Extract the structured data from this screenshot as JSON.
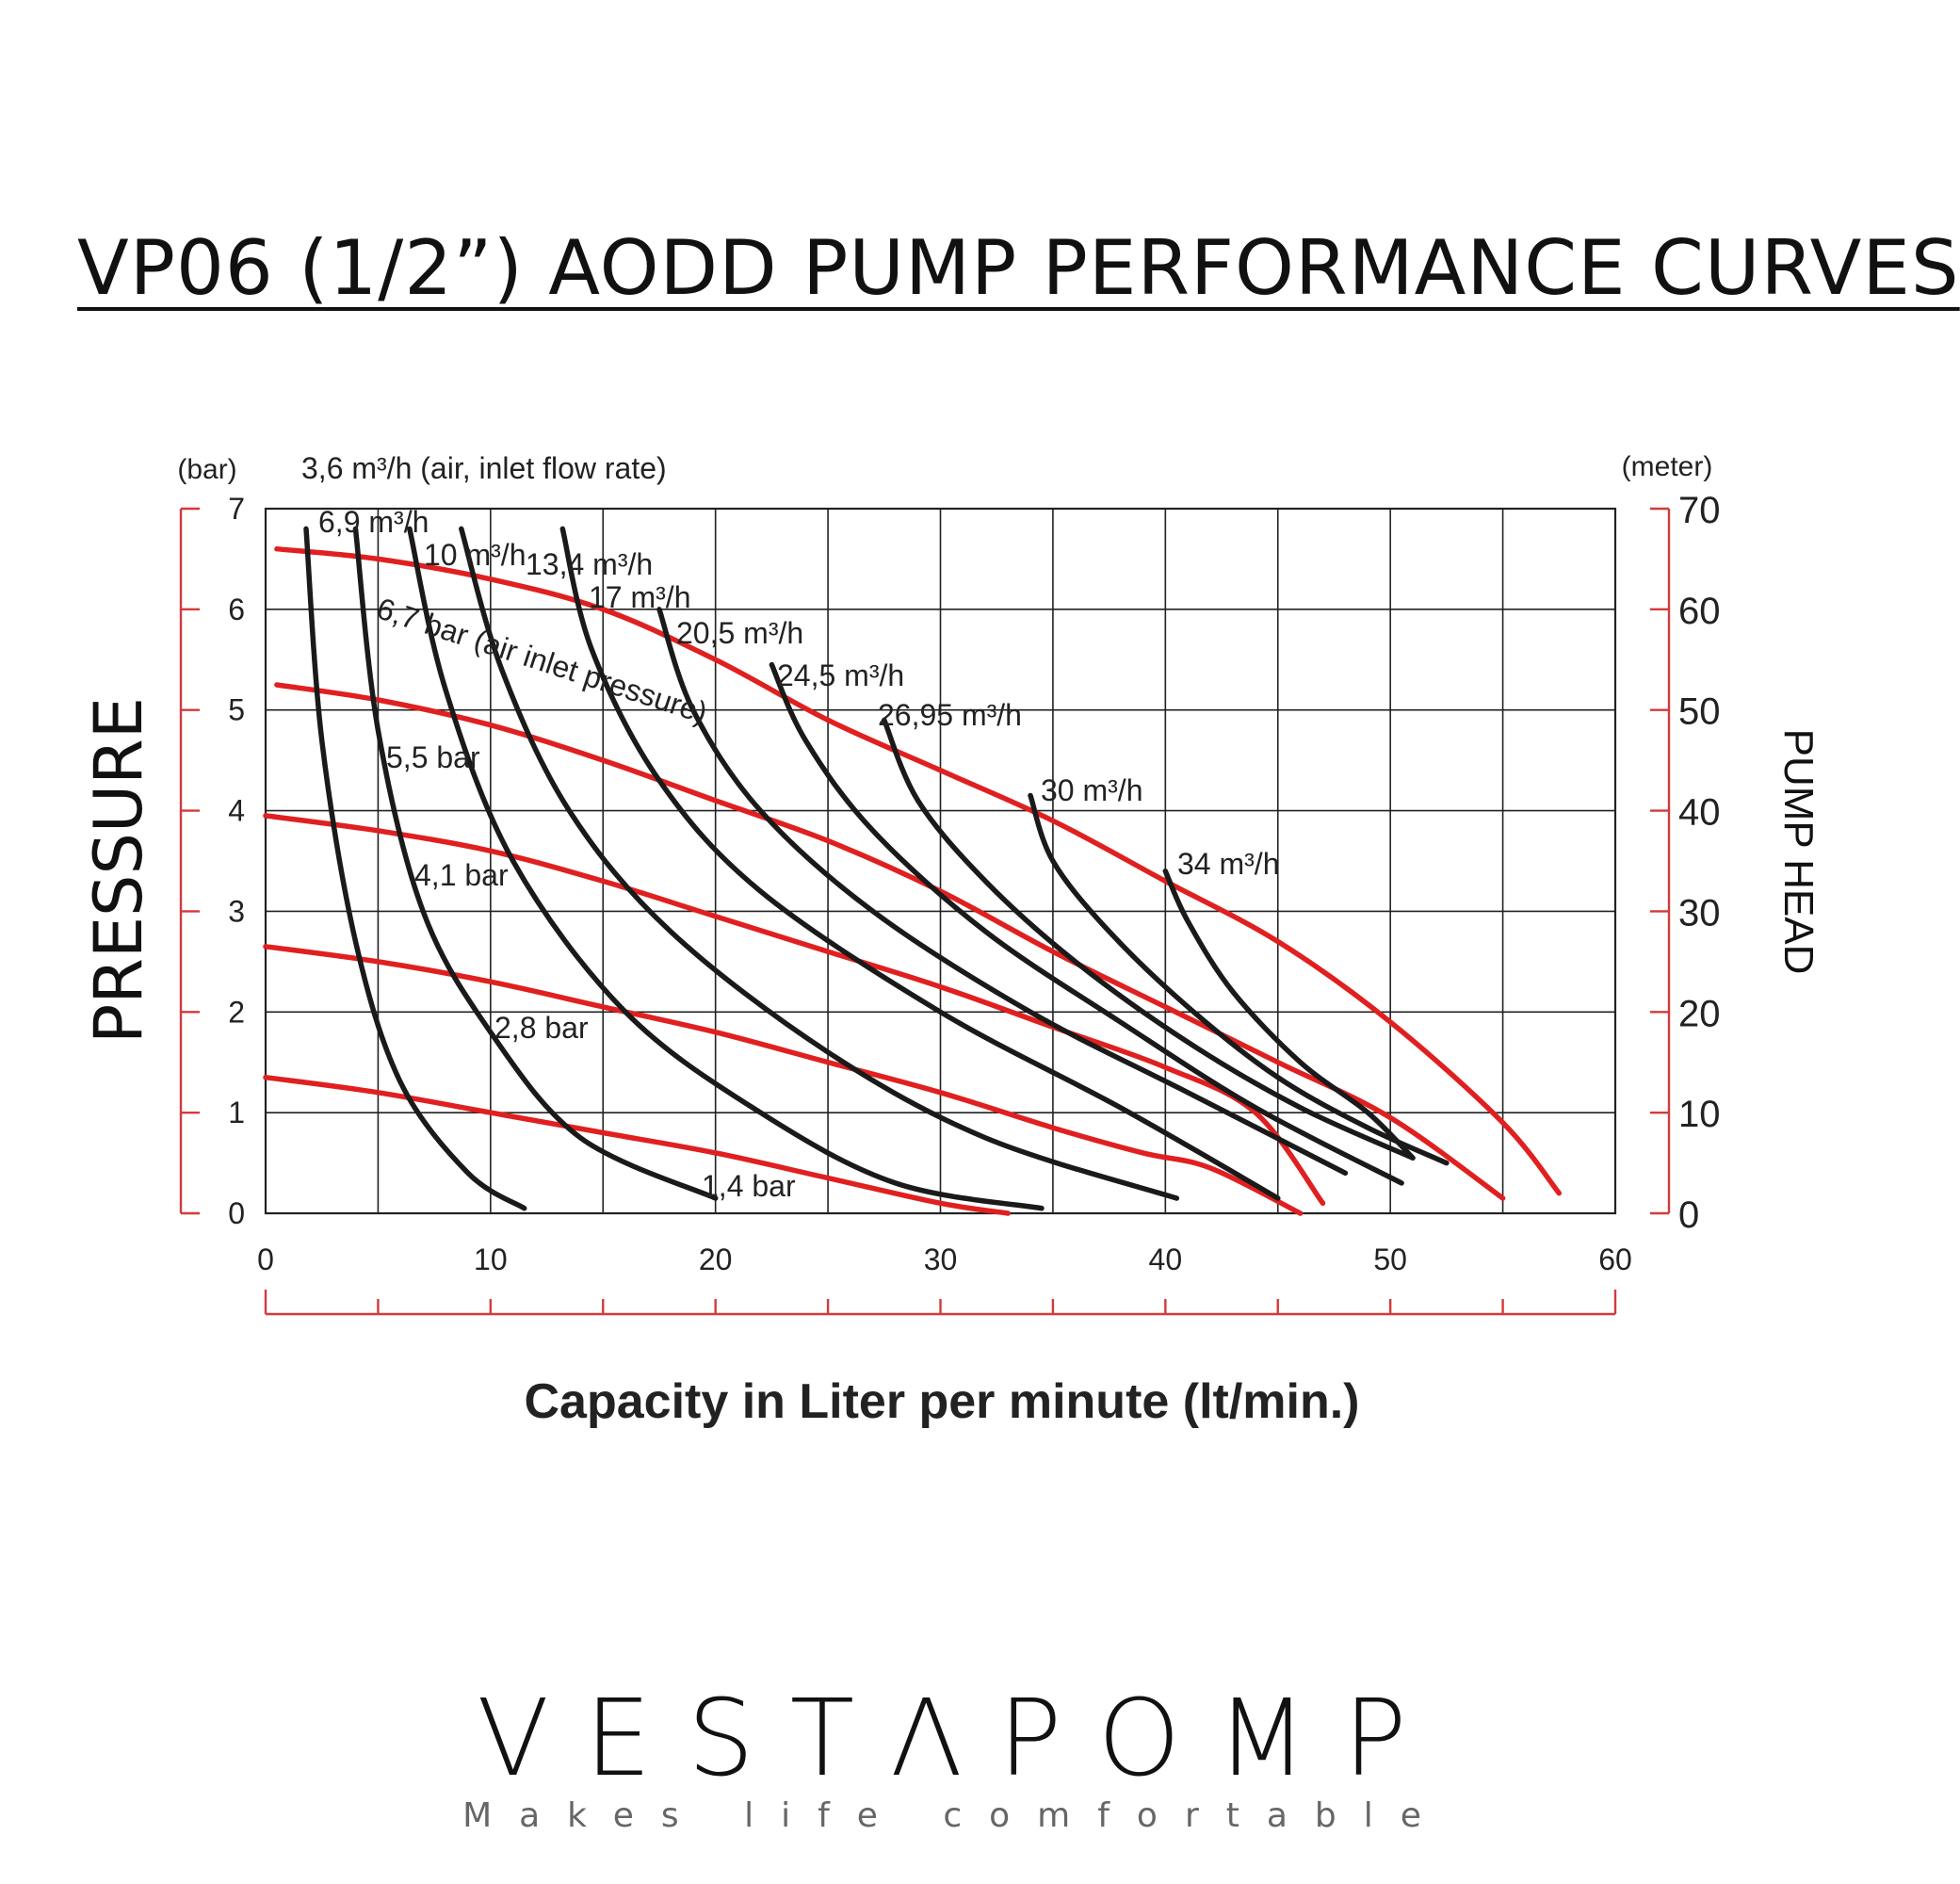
{
  "page": {
    "title": "VP06 (1/2”) AODD PUMP PERFORMANCE CURVES"
  },
  "brand": {
    "logo": "VESTΛPOMP",
    "tagline": "Makes life comfortable"
  },
  "colors": {
    "pressure_curve": "#e02020",
    "air_curve": "#1a1a1a",
    "axis_accent": "#d43a3a",
    "grid": "#222222"
  },
  "chart_data": {
    "type": "line",
    "title": "VP06 (1/2”) AODD PUMP PERFORMANCE CURVES",
    "xlabel": "Capacity in Liter per minute (lt/min.)",
    "ylabel": "PRESSURE",
    "y2label": "PUMP HEAD",
    "y_unit": "(bar)",
    "y2_unit": "(meter)",
    "xlim": [
      0,
      60
    ],
    "ylim": [
      0,
      7
    ],
    "y2lim": [
      0,
      70
    ],
    "x_ticks": [
      0,
      10,
      20,
      30,
      40,
      50,
      60
    ],
    "y_ticks": [
      0,
      1,
      2,
      3,
      4,
      5,
      6,
      7
    ],
    "y2_ticks": [
      0,
      10,
      20,
      30,
      40,
      50,
      60,
      70
    ],
    "grid": true,
    "pressure_curves": [
      {
        "name": "6,7 bar (air inlet pressure)",
        "points": [
          [
            0.5,
            6.6
          ],
          [
            5,
            6.5
          ],
          [
            10,
            6.3
          ],
          [
            15,
            6.0
          ],
          [
            20,
            5.5
          ],
          [
            25,
            4.9
          ],
          [
            30,
            4.4
          ],
          [
            35,
            3.9
          ],
          [
            40,
            3.3
          ],
          [
            45,
            2.7
          ],
          [
            50,
            1.9
          ],
          [
            55,
            0.9
          ],
          [
            57.5,
            0.2
          ]
        ]
      },
      {
        "name": "5,5 bar",
        "points": [
          [
            0.5,
            5.25
          ],
          [
            5,
            5.1
          ],
          [
            10,
            4.85
          ],
          [
            15,
            4.5
          ],
          [
            20,
            4.1
          ],
          [
            25,
            3.7
          ],
          [
            30,
            3.2
          ],
          [
            35,
            2.6
          ],
          [
            40,
            2.05
          ],
          [
            45,
            1.5
          ],
          [
            50,
            0.95
          ],
          [
            55,
            0.15
          ]
        ]
      },
      {
        "name": "4,1 bar",
        "points": [
          [
            0,
            3.95
          ],
          [
            5,
            3.8
          ],
          [
            10,
            3.6
          ],
          [
            15,
            3.3
          ],
          [
            20,
            2.95
          ],
          [
            25,
            2.6
          ],
          [
            30,
            2.25
          ],
          [
            35,
            1.85
          ],
          [
            40,
            1.45
          ],
          [
            44,
            1.0
          ],
          [
            47,
            0.1
          ]
        ]
      },
      {
        "name": "2,8 bar",
        "points": [
          [
            0,
            2.65
          ],
          [
            5,
            2.5
          ],
          [
            10,
            2.3
          ],
          [
            15,
            2.05
          ],
          [
            20,
            1.8
          ],
          [
            25,
            1.5
          ],
          [
            30,
            1.2
          ],
          [
            35,
            0.85
          ],
          [
            39,
            0.6
          ],
          [
            42,
            0.45
          ],
          [
            46,
            0.0
          ]
        ]
      },
      {
        "name": "1,4 bar",
        "points": [
          [
            0,
            1.35
          ],
          [
            5,
            1.2
          ],
          [
            10,
            1.0
          ],
          [
            15,
            0.8
          ],
          [
            20,
            0.6
          ],
          [
            25,
            0.35
          ],
          [
            30,
            0.1
          ],
          [
            33,
            0.0
          ]
        ]
      }
    ],
    "air_consumption_curves": [
      {
        "name": "3,6 m³/h (air, inlet flow rate)",
        "points": [
          [
            1.8,
            6.8
          ],
          [
            2.5,
            4.7
          ],
          [
            4,
            2.7
          ],
          [
            6,
            1.3
          ],
          [
            9,
            0.4
          ],
          [
            11.5,
            0.05
          ]
        ]
      },
      {
        "name": "6,9 m³/h",
        "points": [
          [
            4,
            6.8
          ],
          [
            5,
            4.8
          ],
          [
            7,
            3.0
          ],
          [
            10,
            1.8
          ],
          [
            14,
            0.75
          ],
          [
            20,
            0.15
          ]
        ]
      },
      {
        "name": "10 m³/h",
        "points": [
          [
            6.4,
            6.8
          ],
          [
            8,
            5.2
          ],
          [
            11,
            3.5
          ],
          [
            16,
            2.0
          ],
          [
            22,
            1.0
          ],
          [
            28,
            0.3
          ],
          [
            34.5,
            0.05
          ]
        ]
      },
      {
        "name": "13,4 m³/h",
        "points": [
          [
            8.7,
            6.8
          ],
          [
            10.5,
            5.4
          ],
          [
            13.5,
            4.0
          ],
          [
            18,
            2.8
          ],
          [
            25,
            1.6
          ],
          [
            32,
            0.75
          ],
          [
            40.5,
            0.15
          ]
        ]
      },
      {
        "name": "17 m³/h",
        "points": [
          [
            13.2,
            6.8
          ],
          [
            14.5,
            5.6
          ],
          [
            17.5,
            4.3
          ],
          [
            22,
            3.2
          ],
          [
            30,
            2.0
          ],
          [
            38,
            1.05
          ],
          [
            45,
            0.15
          ]
        ]
      },
      {
        "name": "20,5 m³/h",
        "points": [
          [
            17.5,
            6.0
          ],
          [
            19,
            5.0
          ],
          [
            22,
            4.0
          ],
          [
            27,
            3.0
          ],
          [
            34,
            2.0
          ],
          [
            41,
            1.2
          ],
          [
            48,
            0.4
          ]
        ]
      },
      {
        "name": "24,5 m³/h",
        "points": [
          [
            22.5,
            5.45
          ],
          [
            24,
            4.7
          ],
          [
            27,
            3.8
          ],
          [
            32,
            2.8
          ],
          [
            38,
            1.9
          ],
          [
            44,
            1.05
          ],
          [
            50.5,
            0.3
          ]
        ]
      },
      {
        "name": "26,95 m³/h",
        "points": [
          [
            27.5,
            4.9
          ],
          [
            29,
            4.1
          ],
          [
            32,
            3.3
          ],
          [
            36,
            2.5
          ],
          [
            41,
            1.7
          ],
          [
            46,
            1.05
          ],
          [
            51,
            0.55
          ]
        ]
      },
      {
        "name": "30 m³/h",
        "points": [
          [
            34,
            4.15
          ],
          [
            35,
            3.5
          ],
          [
            37.5,
            2.8
          ],
          [
            41,
            2.05
          ],
          [
            45,
            1.35
          ],
          [
            49,
            0.85
          ],
          [
            52.5,
            0.5
          ]
        ]
      },
      {
        "name": "34 m³/h",
        "points": [
          [
            40,
            3.4
          ],
          [
            41,
            2.9
          ],
          [
            43,
            2.2
          ],
          [
            46,
            1.5
          ],
          [
            49,
            1.0
          ],
          [
            51,
            0.55
          ]
        ]
      }
    ]
  }
}
